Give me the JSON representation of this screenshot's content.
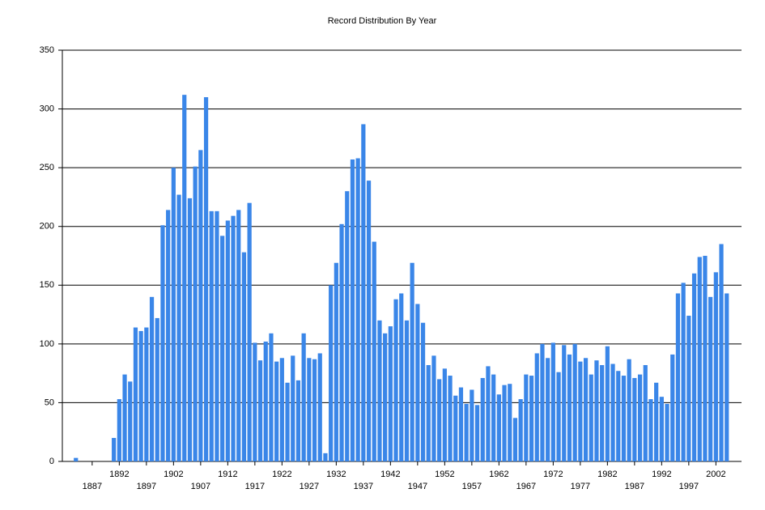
{
  "chart_data": {
    "type": "bar",
    "title": "Record Distribution By Year",
    "categories": [
      null,
      null,
      null,
      null,
      null,
      "1887",
      null,
      null,
      null,
      null,
      "1892",
      null,
      null,
      null,
      null,
      "1897",
      null,
      null,
      null,
      null,
      "1902",
      null,
      null,
      null,
      null,
      "1907",
      null,
      null,
      null,
      null,
      "1912",
      null,
      null,
      null,
      null,
      "1917",
      null,
      null,
      null,
      null,
      "1922",
      null,
      null,
      null,
      null,
      "1927",
      null,
      null,
      null,
      null,
      "1932",
      null,
      null,
      null,
      null,
      "1937",
      null,
      null,
      null,
      null,
      "1942",
      null,
      null,
      null,
      null,
      "1947",
      null,
      null,
      null,
      null,
      "1952",
      null,
      null,
      null,
      null,
      "1957",
      null,
      null,
      null,
      null,
      "1962",
      null,
      null,
      null,
      null,
      "1967",
      null,
      null,
      null,
      null,
      "1972",
      null,
      null,
      null,
      null,
      "1977",
      null,
      null,
      null,
      null,
      "1982",
      null,
      null,
      null,
      null,
      "1987",
      null,
      null,
      null,
      null,
      "1992",
      null,
      null,
      null,
      null,
      "1997",
      null,
      null,
      null,
      null,
      "2002",
      null,
      null
    ],
    "values": [
      0,
      0,
      3,
      0,
      0,
      0,
      0,
      0,
      0,
      20,
      53,
      74,
      68,
      114,
      111,
      114,
      140,
      122,
      201,
      214,
      250,
      227,
      312,
      224,
      251,
      265,
      310,
      213,
      213,
      192,
      205,
      209,
      214,
      178,
      220,
      101,
      86,
      102,
      109,
      85,
      88,
      67,
      90,
      69,
      109,
      88,
      87,
      92,
      7,
      150,
      169,
      202,
      230,
      257,
      258,
      287,
      239,
      187,
      120,
      109,
      115,
      138,
      143,
      120,
      169,
      134,
      118,
      82,
      90,
      70,
      79,
      73,
      56,
      63,
      49,
      61,
      48,
      71,
      81,
      74,
      57,
      65,
      66,
      37,
      53,
      74,
      73,
      92,
      100,
      88,
      101,
      76,
      99,
      91,
      100,
      85,
      88,
      74,
      86,
      82,
      98,
      83,
      77,
      73,
      87,
      71,
      74,
      82,
      53,
      67,
      55,
      49,
      91,
      143,
      152,
      124,
      160,
      174,
      175,
      140,
      161,
      185,
      143
    ],
    "color": "#3a86e8",
    "ylim": [
      0,
      350
    ],
    "yticks": [
      0,
      50,
      100,
      150,
      200,
      250,
      300,
      350
    ],
    "grid": true
  }
}
